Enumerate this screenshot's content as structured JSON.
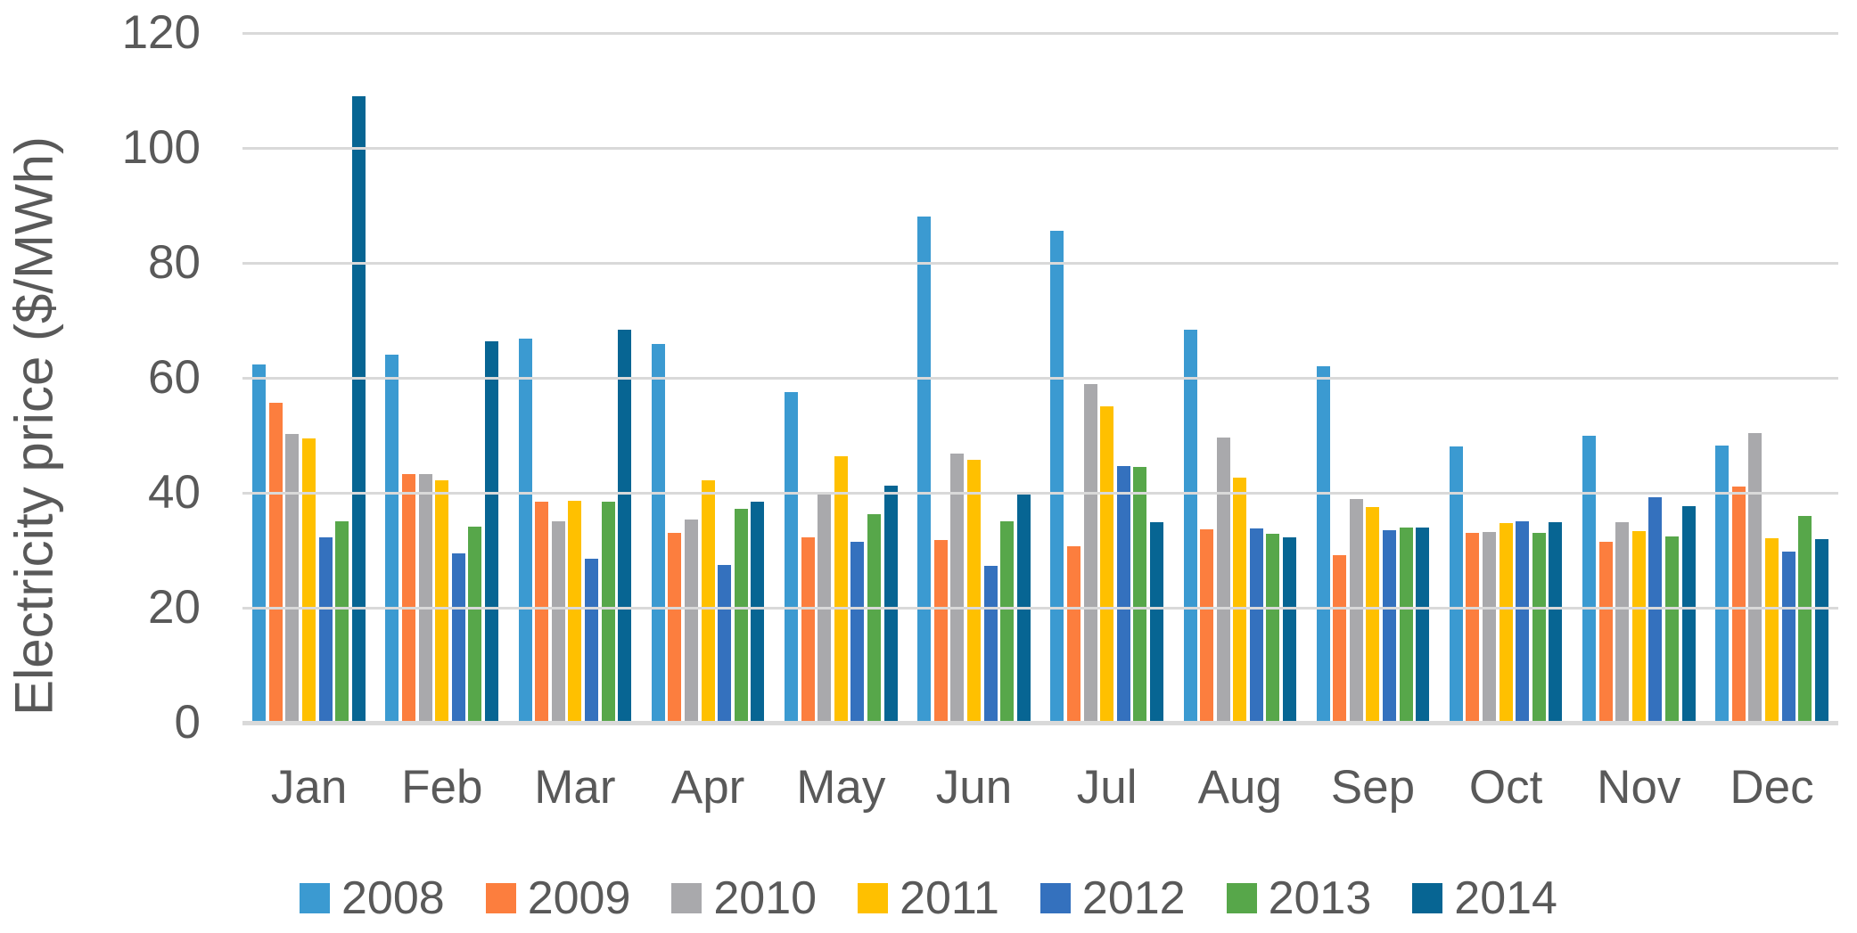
{
  "chart_data": {
    "type": "bar",
    "title": "",
    "xlabel": "",
    "ylabel": "Electricity price ($/MWh)",
    "ylim": [
      0,
      120
    ],
    "yticks": [
      0,
      20,
      40,
      60,
      80,
      100,
      120
    ],
    "grid": true,
    "legend_position": "bottom",
    "categories": [
      "Jan",
      "Feb",
      "Mar",
      "Apr",
      "May",
      "Jun",
      "Jul",
      "Aug",
      "Sep",
      "Oct",
      "Nov",
      "Dec"
    ],
    "series": [
      {
        "name": "2008",
        "color": "#3B9AD1",
        "values": [
          62.4,
          64.1,
          66.8,
          65.9,
          57.5,
          88.0,
          85.6,
          68.4,
          62.0,
          48.1,
          49.9,
          48.2
        ]
      },
      {
        "name": "2009",
        "color": "#FC7E3E",
        "values": [
          55.7,
          43.2,
          38.4,
          33.1,
          32.3,
          31.8,
          30.7,
          33.6,
          29.1,
          33.0,
          31.4,
          41.1
        ]
      },
      {
        "name": "2010",
        "color": "#A9A9AC",
        "values": [
          50.2,
          43.3,
          35.1,
          35.4,
          40.0,
          46.8,
          58.9,
          49.6,
          38.9,
          33.2,
          34.9,
          50.4
        ]
      },
      {
        "name": "2011",
        "color": "#FFC000",
        "values": [
          49.5,
          42.1,
          38.6,
          42.2,
          46.3,
          45.8,
          55.0,
          42.6,
          37.5,
          34.7,
          33.3,
          32.1
        ]
      },
      {
        "name": "2012",
        "color": "#3471BE",
        "values": [
          32.3,
          29.5,
          28.6,
          27.4,
          31.4,
          27.3,
          44.7,
          33.8,
          33.5,
          35.0,
          39.2,
          29.7
        ]
      },
      {
        "name": "2013",
        "color": "#57A74A",
        "values": [
          35.1,
          34.1,
          38.4,
          37.2,
          36.3,
          35.0,
          44.5,
          32.8,
          34.0,
          33.1,
          32.4,
          36.0
        ]
      },
      {
        "name": "2014",
        "color": "#076593",
        "values": [
          109.0,
          66.3,
          68.4,
          38.5,
          41.3,
          40.0,
          34.9,
          32.2,
          33.9,
          34.9,
          37.6,
          32.0
        ]
      }
    ],
    "colors": {
      "grid": "#D9D9D9",
      "text": "#595959",
      "background": "#FFFFFF"
    }
  }
}
